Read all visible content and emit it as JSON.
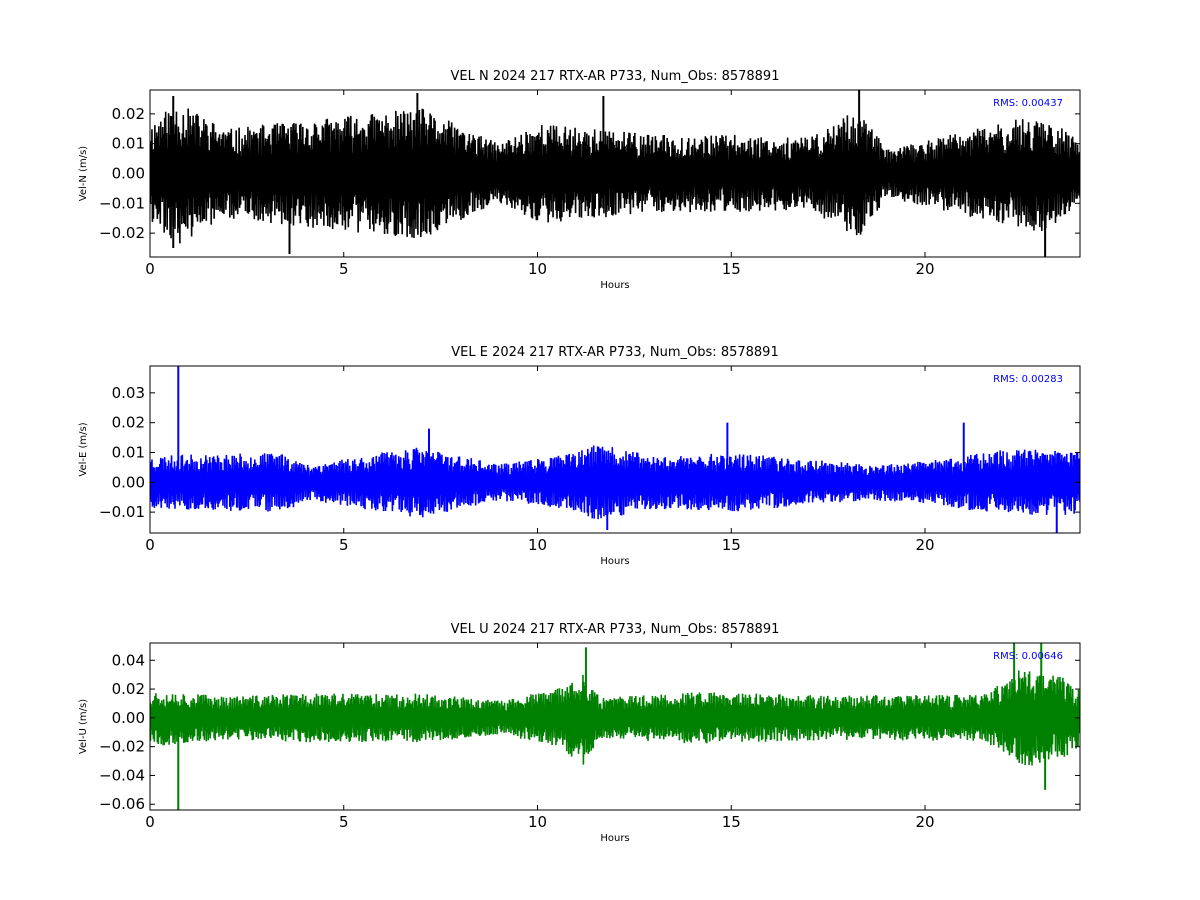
{
  "chart_data": [
    {
      "type": "line",
      "title": "VEL N 2024 217 RTX-AR  P733, Num_Obs: 8578891",
      "xlabel": "Hours",
      "ylabel": "Vel-N (m/s)",
      "xlim": [
        0,
        24
      ],
      "ylim": [
        -0.028,
        0.028
      ],
      "xticks": [
        0,
        5,
        10,
        15,
        20
      ],
      "yticks": [
        -0.02,
        -0.01,
        0.0,
        0.01,
        0.02
      ],
      "xtick_labels": [
        "0",
        "5",
        "10",
        "15",
        "20"
      ],
      "ytick_labels": [
        "−0.02",
        "−0.01",
        "0.00",
        "0.01",
        "0.02"
      ],
      "color": "#000000",
      "annotation": "RMS:  0.00437",
      "annotation_color": "#0000ff",
      "rms": 0.00437,
      "envelope": [
        [
          0,
          0.017
        ],
        [
          0.7,
          0.024
        ],
        [
          2,
          0.015
        ],
        [
          4,
          0.018
        ],
        [
          7,
          0.022
        ],
        [
          9,
          0.01
        ],
        [
          10,
          0.017
        ],
        [
          13,
          0.013
        ],
        [
          15,
          0.013
        ],
        [
          17,
          0.012
        ],
        [
          18.3,
          0.022
        ],
        [
          19,
          0.008
        ],
        [
          21,
          0.014
        ],
        [
          23,
          0.02
        ],
        [
          24,
          0.011
        ]
      ],
      "spikes": [
        [
          0.6,
          0.026
        ],
        [
          0.6,
          -0.025
        ],
        [
          3.6,
          -0.027
        ],
        [
          6.9,
          0.027
        ],
        [
          11.7,
          0.026
        ],
        [
          18.3,
          0.028
        ],
        [
          23.1,
          -0.028
        ]
      ],
      "seed": 11
    },
    {
      "type": "line",
      "title": "VEL E 2024 217 RTX-AR  P733, Num_Obs: 8578891",
      "xlabel": "Hours",
      "ylabel": "Vel-E (m/s)",
      "xlim": [
        0,
        24
      ],
      "ylim": [
        -0.017,
        0.039
      ],
      "xticks": [
        0,
        5,
        10,
        15,
        20
      ],
      "yticks": [
        -0.01,
        0.0,
        0.01,
        0.02,
        0.03
      ],
      "xtick_labels": [
        "0",
        "5",
        "10",
        "15",
        "20"
      ],
      "ytick_labels": [
        "−0.01",
        "0.00",
        "0.01",
        "0.02",
        "0.03"
      ],
      "color": "#0000ff",
      "annotation": "RMS:  0.00283",
      "annotation_color": "#0000ff",
      "rms": 0.00283,
      "envelope": [
        [
          0,
          0.009
        ],
        [
          3.5,
          0.01
        ],
        [
          4,
          0.006
        ],
        [
          7,
          0.012
        ],
        [
          9,
          0.006
        ],
        [
          11,
          0.01
        ],
        [
          11.5,
          0.013
        ],
        [
          13,
          0.009
        ],
        [
          15,
          0.01
        ],
        [
          18.5,
          0.006
        ],
        [
          20,
          0.007
        ],
        [
          22,
          0.011
        ],
        [
          24,
          0.011
        ]
      ],
      "spikes": [
        [
          0.73,
          0.039
        ],
        [
          7.2,
          0.018
        ],
        [
          14.9,
          0.02
        ],
        [
          21,
          0.02
        ],
        [
          11.8,
          -0.016
        ],
        [
          23.4,
          -0.017
        ]
      ],
      "seed": 23
    },
    {
      "type": "line",
      "title": "VEL U 2024 217 RTX-AR  P733, Num_Obs: 8578891",
      "xlabel": "Hours",
      "ylabel": "Vel-U (m/s)",
      "xlim": [
        0,
        24
      ],
      "ylim": [
        -0.064,
        0.052
      ],
      "xticks": [
        0,
        5,
        10,
        15,
        20
      ],
      "yticks": [
        -0.06,
        -0.04,
        -0.02,
        0.0,
        0.02,
        0.04
      ],
      "xtick_labels": [
        "0",
        "5",
        "10",
        "15",
        "20"
      ],
      "ytick_labels": [
        "−0.06",
        "−0.04",
        "−0.02",
        "0.00",
        "0.02",
        "0.04"
      ],
      "color": "#008000",
      "annotation": "RMS:  0.00646",
      "annotation_color": "#0000ff",
      "rms": 0.00646,
      "envelope": [
        [
          0,
          0.02
        ],
        [
          2,
          0.015
        ],
        [
          4,
          0.017
        ],
        [
          7,
          0.017
        ],
        [
          9,
          0.012
        ],
        [
          10.5,
          0.02
        ],
        [
          11.2,
          0.033
        ],
        [
          11.6,
          0.014
        ],
        [
          14,
          0.018
        ],
        [
          17,
          0.016
        ],
        [
          20,
          0.016
        ],
        [
          21.5,
          0.016
        ],
        [
          22.5,
          0.035
        ],
        [
          23.5,
          0.03
        ],
        [
          24,
          0.02
        ]
      ],
      "spikes": [
        [
          0.73,
          -0.064
        ],
        [
          11.25,
          0.049
        ],
        [
          22.3,
          0.052
        ],
        [
          23,
          0.052
        ],
        [
          23.1,
          -0.05
        ]
      ],
      "seed": 37
    }
  ]
}
